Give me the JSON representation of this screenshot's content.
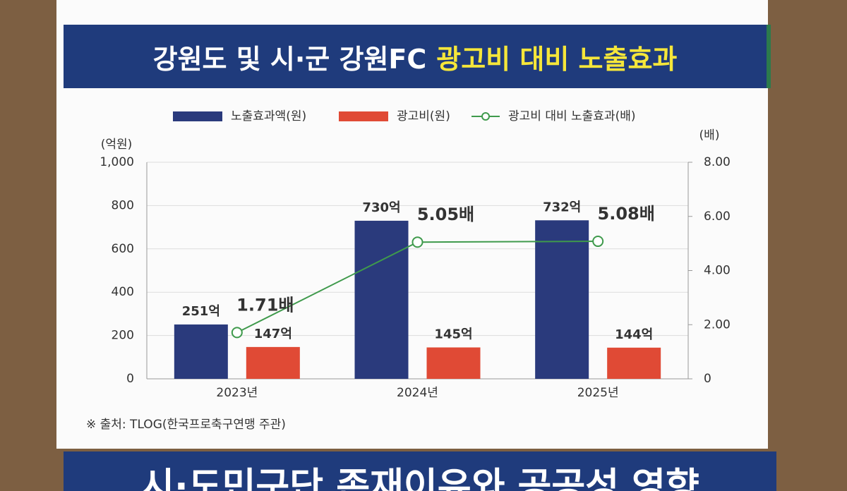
{
  "chart_data": {
    "type": "bar-line",
    "title": "강원도 및 시·군 강원FC",
    "title_highlight": "광고비 대비 노출효과",
    "categories": [
      "2023년",
      "2024년",
      "2025년"
    ],
    "y_unit": "(억원)",
    "y2_unit": "(배)",
    "ylim": [
      0,
      1000
    ],
    "yticks": [
      0,
      200,
      400,
      600,
      800,
      {
        "value": 1000,
        "label": "1,000"
      }
    ],
    "y2lim": [
      0,
      8
    ],
    "y2ticks": [
      0,
      {
        "value": 2,
        "label": "2.00"
      },
      {
        "value": 4,
        "label": "4.00"
      },
      {
        "value": 6,
        "label": "6.00"
      },
      {
        "value": 8,
        "label": "8.00"
      }
    ],
    "grid": true,
    "series": [
      {
        "name": "노출효과액(원)",
        "type": "bar",
        "color": "#2a3a7c",
        "values": [
          251,
          730,
          732
        ],
        "value_labels": [
          "251억",
          "730억",
          "732억"
        ]
      },
      {
        "name": "광고비(원)",
        "type": "bar",
        "color": "#e04a35",
        "values": [
          147,
          145,
          144
        ],
        "value_labels": [
          "147억",
          "145억",
          "144억"
        ]
      },
      {
        "name": "광고비 대비 노출효과(배)",
        "type": "line",
        "axis": "y2",
        "color": "#3f9a4c",
        "values": [
          1.71,
          5.05,
          5.08
        ],
        "value_labels": [
          "1.71배",
          "5.05배",
          "5.08배"
        ]
      }
    ],
    "source": "※ 출처: TLOG(한국프로축구연맹 주관)",
    "next_banner": "시·도민구단 존재이유와 공공성 영향"
  }
}
